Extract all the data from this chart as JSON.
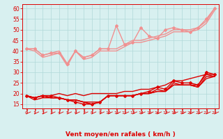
{
  "title": "",
  "xlabel": "Vent moyen/en rafales ( km/h )",
  "bg_color": "#d8f0f0",
  "grid_color": "#b0d8d8",
  "x": [
    0,
    1,
    2,
    3,
    4,
    5,
    6,
    7,
    8,
    9,
    10,
    11,
    12,
    13,
    14,
    15,
    16,
    17,
    18,
    19,
    20,
    21,
    22,
    23
  ],
  "ylim": [
    13,
    62
  ],
  "yticks": [
    15,
    20,
    25,
    30,
    35,
    40,
    45,
    50,
    55,
    60
  ],
  "series": [
    {
      "y": [
        41,
        41,
        38,
        39,
        39,
        34,
        40,
        37,
        38,
        41,
        41,
        52,
        43,
        44,
        51,
        47,
        46,
        50,
        51,
        50,
        49,
        51,
        55,
        60
      ],
      "color": "#f09090",
      "lw": 1.0,
      "marker": "D",
      "ms": 2.0,
      "zorder": 3
    },
    {
      "y": [
        41,
        41,
        38,
        39,
        40,
        34,
        40,
        37,
        38,
        41,
        41,
        41,
        43,
        45,
        45,
        46,
        47,
        48,
        50,
        50,
        50,
        51,
        54,
        60
      ],
      "color": "#f09090",
      "lw": 1.0,
      "marker": null,
      "ms": 0,
      "zorder": 2
    },
    {
      "y": [
        41,
        40,
        37,
        38,
        39,
        33,
        40,
        36,
        37,
        40,
        40,
        40,
        42,
        44,
        44,
        45,
        46,
        47,
        49,
        49,
        49,
        50,
        53,
        59
      ],
      "color": "#f09090",
      "lw": 1.0,
      "marker": null,
      "ms": 0,
      "zorder": 2
    },
    {
      "y": [
        19,
        18,
        19,
        19,
        18,
        17,
        16,
        15,
        15,
        16,
        19,
        19,
        19,
        19,
        20,
        21,
        23,
        22,
        26,
        25,
        25,
        24,
        30,
        29
      ],
      "color": "#dd0000",
      "lw": 1.0,
      "marker": "D",
      "ms": 2.0,
      "zorder": 4
    },
    {
      "y": [
        19,
        18,
        19,
        19,
        20,
        19,
        20,
        19,
        20,
        20,
        20,
        20,
        21,
        21,
        22,
        22,
        23,
        24,
        26,
        26,
        27,
        28,
        29,
        29
      ],
      "color": "#dd0000",
      "lw": 1.0,
      "marker": null,
      "ms": 0,
      "zorder": 3
    },
    {
      "y": [
        19,
        17,
        18,
        18,
        18,
        17,
        17,
        16,
        15,
        16,
        19,
        19,
        19,
        19,
        20,
        20,
        22,
        21,
        25,
        24,
        24,
        24,
        29,
        28
      ],
      "color": "#dd0000",
      "lw": 1.0,
      "marker": null,
      "ms": 0,
      "zorder": 3
    },
    {
      "y": [
        19,
        18,
        19,
        18,
        18,
        17,
        17,
        16,
        15,
        16,
        19,
        19,
        19,
        19,
        20,
        20,
        21,
        21,
        24,
        24,
        24,
        23,
        28,
        28
      ],
      "color": "#dd0000",
      "lw": 1.0,
      "marker": null,
      "ms": 0,
      "zorder": 3
    },
    {
      "y": [
        19,
        18,
        19,
        18,
        18,
        17,
        17,
        16,
        16,
        16,
        19,
        19,
        19,
        19,
        20,
        20,
        21,
        21,
        24,
        24,
        24,
        23,
        27,
        28
      ],
      "color": "#dd0000",
      "lw": 1.0,
      "marker": null,
      "ms": 0,
      "zorder": 3
    }
  ],
  "arrow_color": "#dd0000",
  "tick_color": "#dd0000",
  "xlabel_color": "#dd0000",
  "xlabel_fontsize": 6.5,
  "ytick_fontsize": 5.5,
  "xtick_fontsize": 4.5
}
